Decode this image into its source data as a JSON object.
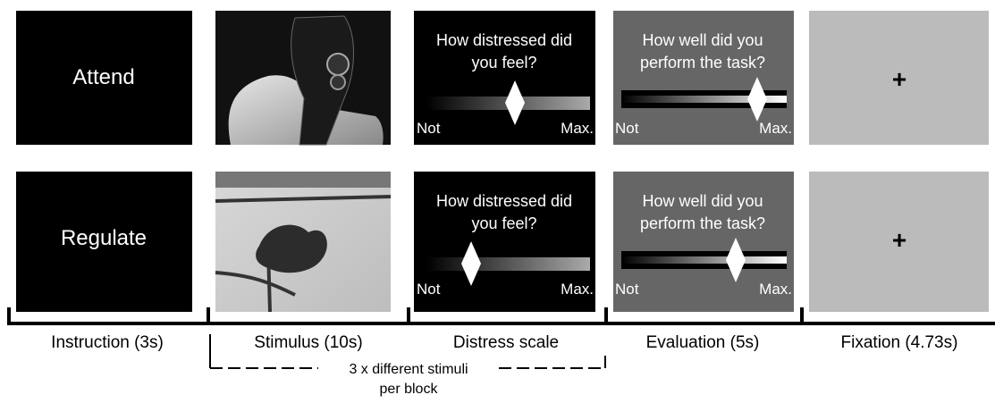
{
  "rows": [
    {
      "instruction": "Attend"
    },
    {
      "instruction": "Regulate"
    }
  ],
  "distress_scale": {
    "question": [
      "How distressed did",
      "you feel?"
    ],
    "min_label": "Not",
    "max_label": "Max."
  },
  "evaluation_scale": {
    "question": [
      "How well did you",
      "perform the task?"
    ],
    "min_label": "Not",
    "max_label": "Max."
  },
  "fixation": "+",
  "timeline": [
    "Instruction (3s)",
    "Stimulus (10s)",
    "Distress scale",
    "Evaluation (5s)",
    "Fixation (4.73s)"
  ],
  "block_note": [
    "3 x different stimuli",
    "per block"
  ]
}
